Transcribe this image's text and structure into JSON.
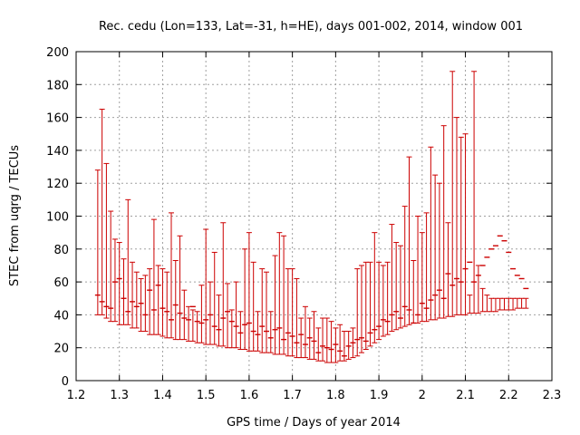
{
  "chart_data": {
    "type": "scatter",
    "title": "Rec. cedu (Lon=133, Lat=-31, h=HE), days 001-002, 2014, window 001",
    "xlabel": "GPS time / Days of year 2014",
    "ylabel": "STEC from uqrg / TECUs",
    "xlim": [
      1.2,
      2.3
    ],
    "ylim": [
      0,
      200
    ],
    "x_ticks": [
      1.2,
      1.3,
      1.4,
      1.5,
      1.6,
      1.7,
      1.8,
      1.9,
      2.0,
      2.1,
      2.2,
      2.3
    ],
    "x_tick_labels": [
      "1.2",
      "1.3",
      "1.4",
      "1.5",
      "1.6",
      "1.7",
      "1.8",
      "1.9",
      "2",
      "2.1",
      "2.2",
      "2.3"
    ],
    "y_ticks": [
      0,
      20,
      40,
      60,
      80,
      100,
      120,
      140,
      160,
      180,
      200
    ],
    "y_tick_labels": [
      "0",
      "20",
      "40",
      "60",
      "80",
      "100",
      "120",
      "140",
      "160",
      "180",
      "200"
    ],
    "grid": true,
    "color": "#cc0000",
    "series": [
      {
        "name": "STEC",
        "x": [
          1.25,
          1.26,
          1.27,
          1.28,
          1.29,
          1.3,
          1.31,
          1.32,
          1.33,
          1.34,
          1.35,
          1.36,
          1.37,
          1.38,
          1.39,
          1.4,
          1.41,
          1.42,
          1.43,
          1.44,
          1.45,
          1.46,
          1.47,
          1.48,
          1.49,
          1.5,
          1.51,
          1.52,
          1.53,
          1.54,
          1.55,
          1.56,
          1.57,
          1.58,
          1.59,
          1.6,
          1.61,
          1.62,
          1.63,
          1.64,
          1.65,
          1.66,
          1.67,
          1.68,
          1.69,
          1.7,
          1.71,
          1.72,
          1.73,
          1.74,
          1.75,
          1.76,
          1.77,
          1.78,
          1.79,
          1.8,
          1.81,
          1.82,
          1.83,
          1.84,
          1.85,
          1.86,
          1.87,
          1.88,
          1.89,
          1.9,
          1.91,
          1.92,
          1.93,
          1.94,
          1.95,
          1.96,
          1.97,
          1.98,
          1.99,
          2.0,
          2.01,
          2.02,
          2.03,
          2.04,
          2.05,
          2.06,
          2.07,
          2.08,
          2.09,
          2.1,
          2.11,
          2.12,
          2.13,
          2.14,
          2.15,
          2.16,
          2.17,
          2.18,
          2.19,
          2.2,
          2.21,
          2.22,
          2.23,
          2.24
        ],
        "y": [
          52,
          48,
          45,
          44,
          60,
          62,
          50,
          42,
          48,
          45,
          47,
          40,
          55,
          43,
          58,
          44,
          42,
          37,
          46,
          41,
          38,
          37,
          45,
          36,
          35,
          37,
          40,
          33,
          31,
          38,
          42,
          36,
          33,
          29,
          34,
          35,
          30,
          28,
          33,
          30,
          26,
          31,
          32,
          25,
          29,
          27,
          23,
          28,
          22,
          26,
          24,
          17,
          21,
          20,
          19,
          22,
          18,
          15,
          21,
          23,
          25,
          26,
          24,
          29,
          31,
          33,
          37,
          36,
          40,
          42,
          38,
          45,
          43,
          35,
          40,
          47,
          44,
          49,
          52,
          55,
          50,
          65,
          58,
          62,
          60,
          68,
          72,
          60,
          64,
          70,
          75,
          80,
          82,
          88,
          85,
          78,
          68,
          64,
          62,
          56
        ],
        "upper": [
          128,
          165,
          132,
          103,
          86,
          84,
          74,
          110,
          72,
          66,
          62,
          64,
          68,
          98,
          70,
          68,
          66,
          102,
          73,
          88,
          55,
          45,
          43,
          42,
          58,
          92,
          60,
          78,
          52,
          96,
          59,
          43,
          60,
          42,
          80,
          90,
          72,
          42,
          68,
          66,
          42,
          76,
          90,
          88,
          68,
          68,
          62,
          38,
          45,
          38,
          42,
          32,
          38,
          38,
          36,
          32,
          34,
          30,
          30,
          32,
          68,
          70,
          72,
          72,
          90,
          72,
          70,
          72,
          95,
          84,
          82,
          106,
          136,
          73,
          100,
          90,
          102,
          142,
          125,
          120,
          155,
          96,
          188,
          160,
          148,
          150,
          52,
          188,
          70,
          56,
          52,
          50,
          50,
          50,
          50,
          50,
          50,
          50,
          50,
          50
        ],
        "lower": [
          40,
          40,
          38,
          36,
          36,
          34,
          34,
          34,
          32,
          32,
          30,
          30,
          28,
          28,
          28,
          27,
          26,
          26,
          25,
          25,
          25,
          24,
          24,
          23,
          23,
          22,
          22,
          22,
          21,
          21,
          20,
          20,
          20,
          19,
          19,
          18,
          18,
          18,
          17,
          17,
          17,
          16,
          16,
          16,
          15,
          15,
          14,
          14,
          14,
          13,
          13,
          12,
          12,
          11,
          11,
          11,
          12,
          12,
          13,
          14,
          15,
          17,
          19,
          21,
          23,
          25,
          27,
          28,
          30,
          31,
          32,
          33,
          34,
          35,
          35,
          36,
          36,
          37,
          37,
          38,
          38,
          39,
          39,
          40,
          40,
          40,
          41,
          41,
          41,
          42,
          42,
          42,
          42,
          43,
          43,
          43,
          43,
          44,
          44,
          44
        ]
      }
    ]
  }
}
